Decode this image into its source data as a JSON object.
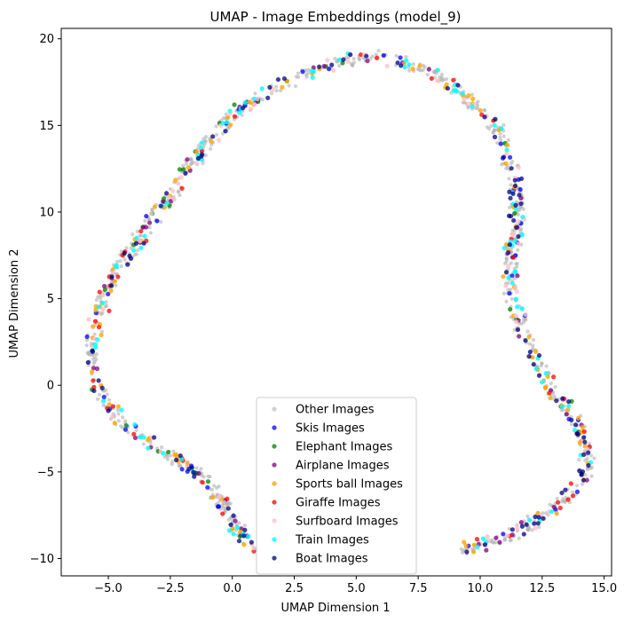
{
  "chart_data": {
    "type": "scatter",
    "title": "UMAP - Image Embeddings (model_9)",
    "xlabel": "UMAP Dimension 1",
    "ylabel": "UMAP Dimension 2",
    "xlim": [
      -6.9,
      15.3
    ],
    "ylim": [
      -11.0,
      20.6
    ],
    "xticks": [
      -5.0,
      -2.5,
      0.0,
      2.5,
      5.0,
      7.5,
      10.0,
      12.5,
      15.0
    ],
    "xtick_labels": [
      "−5.0",
      "−2.5",
      "0.0",
      "2.5",
      "5.0",
      "7.5",
      "10.0",
      "12.5",
      "15.0"
    ],
    "yticks": [
      -10,
      -5,
      0,
      5,
      10,
      15,
      20
    ],
    "ytick_labels": [
      "−10",
      "−5",
      "0",
      "5",
      "10",
      "15",
      "20"
    ],
    "grid": false,
    "legend_position": "bottom-center",
    "path_shape": [
      [
        0.8,
        -9.6
      ],
      [
        0.2,
        -8.2
      ],
      [
        -0.6,
        -6.4
      ],
      [
        -1.5,
        -5.0
      ],
      [
        -2.6,
        -4.0
      ],
      [
        -3.7,
        -3.0
      ],
      [
        -4.6,
        -2.0
      ],
      [
        -5.3,
        -0.6
      ],
      [
        -5.7,
        1.5
      ],
      [
        -5.5,
        3.8
      ],
      [
        -4.9,
        6.0
      ],
      [
        -4.0,
        8.0
      ],
      [
        -3.0,
        10.0
      ],
      [
        -2.0,
        12.0
      ],
      [
        -1.0,
        14.0
      ],
      [
        0.2,
        15.8
      ],
      [
        1.5,
        17.0
      ],
      [
        3.0,
        18.0
      ],
      [
        4.5,
        18.7
      ],
      [
        5.6,
        19.0
      ],
      [
        7.0,
        18.6
      ],
      [
        8.5,
        17.8
      ],
      [
        9.8,
        16.2
      ],
      [
        10.8,
        14.5
      ],
      [
        11.3,
        12.5
      ],
      [
        11.5,
        10.0
      ],
      [
        11.3,
        7.5
      ],
      [
        11.2,
        5.5
      ],
      [
        11.6,
        3.5
      ],
      [
        12.2,
        1.5
      ],
      [
        13.1,
        -0.6
      ],
      [
        13.9,
        -2.0
      ],
      [
        14.3,
        -3.5
      ],
      [
        14.2,
        -5.2
      ],
      [
        13.5,
        -6.5
      ],
      [
        12.5,
        -7.6
      ],
      [
        11.2,
        -8.7
      ],
      [
        9.3,
        -9.5
      ]
    ],
    "series": [
      {
        "name": "Other Images",
        "color": "#b0b0b0",
        "opacity": 0.6,
        "count": 720,
        "seed": 11
      },
      {
        "name": "Skis Images",
        "color": "#0000ff",
        "opacity": 0.75,
        "count": 45,
        "seed": 23
      },
      {
        "name": "Elephant Images",
        "color": "#008000",
        "opacity": 0.75,
        "count": 30,
        "seed": 37
      },
      {
        "name": "Airplane Images",
        "color": "#800080",
        "opacity": 0.75,
        "count": 45,
        "seed": 41
      },
      {
        "name": "Sports ball Images",
        "color": "#ffa500",
        "opacity": 0.8,
        "count": 90,
        "seed": 53
      },
      {
        "name": "Giraffe Images",
        "color": "#ff0000",
        "opacity": 0.75,
        "count": 45,
        "seed": 67
      },
      {
        "name": "Surfboard Images",
        "color": "#ffc0cb",
        "opacity": 0.8,
        "count": 70,
        "seed": 71
      },
      {
        "name": "Train Images",
        "color": "#00ffff",
        "opacity": 0.8,
        "count": 90,
        "seed": 83
      },
      {
        "name": "Boat Images",
        "color": "#000080",
        "opacity": 0.75,
        "count": 110,
        "seed": 97
      }
    ]
  }
}
